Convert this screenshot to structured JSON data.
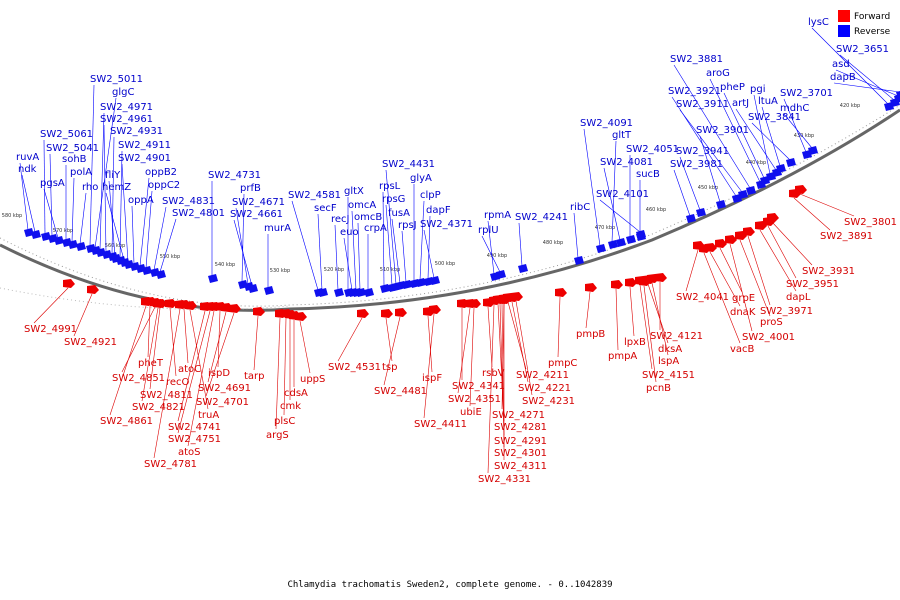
{
  "legend": {
    "forward_label": "Forward",
    "reverse_label": "Reverse",
    "forward_color": "#ff0000",
    "reverse_color": "#0000ff"
  },
  "caption": "Chlamydia trachomatis Sweden2, complete genome. - 0..1042839",
  "ticks": [
    "580 kbp",
    "570 kbp",
    "560 kbp",
    "550 kbp",
    "540 kbp",
    "530 kbp",
    "520 kbp",
    "510 kbp",
    "500 kbp",
    "490 kbp",
    "480 kbp",
    "470 kbp",
    "460 kbp",
    "450 kbp",
    "440 kbp",
    "430 kbp",
    "420 kbp"
  ],
  "reverse_genes": [
    "ruvA",
    "ndk",
    "SW2_5061",
    "SW2_5041",
    "pgsA",
    "sohB",
    "polA",
    "rho",
    "SW2_5011",
    "glgC",
    "SW2_4971",
    "SW2_4961",
    "SW2_4931",
    "fliY",
    "SW2_4911",
    "hemZ",
    "SW2_4901",
    "oppA",
    "oppB2",
    "oppC2",
    "SW2_4831",
    "SW2_4801",
    "SW2_4731",
    "prfB",
    "SW2_4671",
    "SW2_4661",
    "murA",
    "SW2_4581",
    "secF",
    "recJ",
    "gltX",
    "euo",
    "omcA",
    "omcB",
    "crpA",
    "rpsL",
    "rpsG",
    "SW2_4431",
    "fusA",
    "rpsJ",
    "glyA",
    "clpP",
    "dapF",
    "SW2_4371",
    "rpmA",
    "rplU",
    "SW2_4241",
    "ribC",
    "SW2_4091",
    "gltT",
    "SW2_4081",
    "SW2_4051",
    "sucB",
    "SW2_4101",
    "SW2_3981",
    "SW2_3941",
    "SW2_3901",
    "SW2_3921",
    "SW2_3911",
    "SW2_3881",
    "aroG",
    "pheP",
    "pgi",
    "artJ",
    "ltuA",
    "SW2_3841",
    "SW2_3701",
    "mdhC",
    "lysC",
    "SW2_3651",
    "asd",
    "dapB"
  ],
  "forward_genes": [
    "SW2_4991",
    "SW2_4921",
    "pheT",
    "SW2_4851",
    "recO",
    "atoC",
    "SW2_4811",
    "ispD",
    "SW2_4821",
    "SW2_4691",
    "SW2_4701",
    "truA",
    "SW2_4861",
    "SW2_4741",
    "SW2_4751",
    "atoS",
    "SW2_4781",
    "tarp",
    "plsC",
    "cmk",
    "cdsA",
    "uppS",
    "argS",
    "SW2_4531",
    "tsp",
    "SW2_4481",
    "ispF",
    "SW2_4411",
    "SW2_4341",
    "rsbV",
    "SW2_4351",
    "ubiE",
    "SW2_4211",
    "SW2_4221",
    "SW2_4231",
    "SW2_4271",
    "SW2_4281",
    "SW2_4291",
    "SW2_4301",
    "SW2_4311",
    "SW2_4331",
    "pmpC",
    "pmpB",
    "pmpA",
    "lpxB",
    "dksA",
    "SW2_4121",
    "lspA",
    "SW2_4151",
    "pcnB",
    "SW2_4041",
    "grpE",
    "dnaK",
    "vacB",
    "SW2_4001",
    "proS",
    "SW2_3971",
    "dapL",
    "SW2_3951",
    "SW2_3931",
    "SW2_3891",
    "SW2_3801"
  ]
}
